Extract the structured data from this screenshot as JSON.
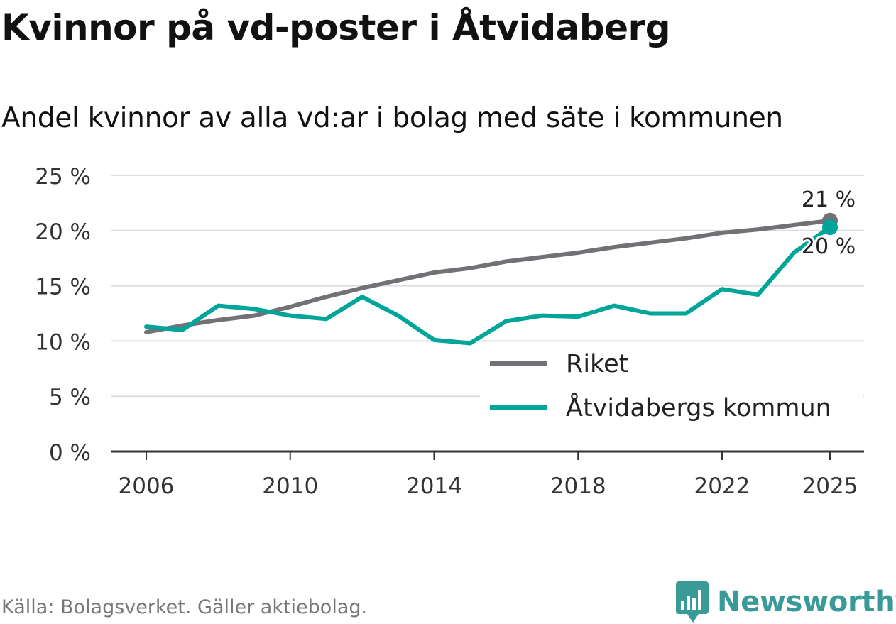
{
  "title": "Kvinnor på vd-poster i Åtvidaberg",
  "subtitle": "Andel kvinnor av alla vd:ar i bolag med säte i kommunen",
  "source": "Källa: Bolagsverket. Gäller aktiebolag.",
  "brand": {
    "name": "Newsworthy",
    "icon": "newsworthy-logo-icon"
  },
  "colors": {
    "riket": "#727176",
    "kommun": "#00a59a",
    "grid": "#dddddd",
    "axis": "#333333"
  },
  "chart_data": {
    "type": "line",
    "x": [
      2006,
      2007,
      2008,
      2009,
      2010,
      2011,
      2012,
      2013,
      2014,
      2015,
      2016,
      2017,
      2018,
      2019,
      2020,
      2021,
      2022,
      2023,
      2024,
      2025
    ],
    "series": [
      {
        "name": "Riket",
        "values": [
          10.8,
          11.4,
          11.9,
          12.3,
          13.1,
          14.0,
          14.8,
          15.5,
          16.2,
          16.6,
          17.2,
          17.6,
          18.0,
          18.5,
          18.9,
          19.3,
          19.8,
          20.1,
          20.5,
          20.9
        ]
      },
      {
        "name": "Åtvidabergs kommun",
        "values": [
          11.3,
          11.0,
          13.2,
          12.9,
          12.3,
          12.0,
          14.0,
          12.3,
          10.1,
          9.8,
          11.8,
          12.3,
          12.2,
          13.2,
          12.5,
          12.5,
          14.7,
          14.2,
          18.0,
          20.3
        ]
      }
    ],
    "end_labels": [
      "21 %",
      "20 %"
    ],
    "yticks": [
      0,
      5,
      10,
      15,
      20,
      25
    ],
    "ytick_labels": [
      "0 %",
      "5 %",
      "10 %",
      "15 %",
      "20 %",
      "25 %"
    ],
    "xticks": [
      2006,
      2010,
      2014,
      2018,
      2022,
      2025
    ],
    "xtick_labels": [
      "2006",
      "2010",
      "2014",
      "2018",
      "2022",
      "2025"
    ],
    "ylim": [
      0,
      25
    ],
    "xlabel": "",
    "ylabel": "",
    "legend": {
      "placement": "lower-right",
      "items": [
        "Riket",
        "Åtvidabergs kommun"
      ]
    }
  }
}
